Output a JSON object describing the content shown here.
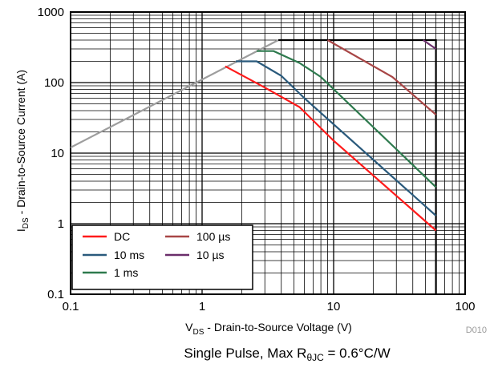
{
  "chart_data": {
    "type": "line",
    "x_scale": "log",
    "y_scale": "log",
    "xlim": [
      0.1,
      100
    ],
    "ylim": [
      0.1,
      1000
    ],
    "x_ticks": [
      "0.1",
      "1",
      "10",
      "100"
    ],
    "y_ticks": [
      "0.1",
      "1",
      "10",
      "100",
      "1000"
    ],
    "xlabel": {
      "main": "V",
      "sub": "DS",
      "rest": " - Drain-to-Source Voltage (V)"
    },
    "ylabel": {
      "main": "I",
      "sub": "DS",
      "rest": " - Drain-to-Source Current (A)"
    },
    "grid": true,
    "legend_position": "bottom-left",
    "figure_id": "D010",
    "caption": {
      "prefix": "Single Pulse, Max R",
      "sub": "θJC",
      "suffix": " = 0.6°C/W"
    },
    "series": [
      {
        "name": "DC",
        "color": "#ff1a1a",
        "x": [
          1.5,
          3,
          5.5,
          10,
          60
        ],
        "y": [
          170,
          85,
          45,
          15,
          0.8
        ]
      },
      {
        "name": "10 ms",
        "color": "#2a5a7c",
        "x": [
          1.8,
          2.6,
          4,
          6,
          60
        ],
        "y": [
          200,
          200,
          125,
          60,
          1.3
        ]
      },
      {
        "name": "1 ms",
        "color": "#2e7a4e",
        "x": [
          2.6,
          3.5,
          5.5,
          8,
          60
        ],
        "y": [
          280,
          280,
          190,
          120,
          3.3
        ]
      },
      {
        "name": "100 µs",
        "color": "#a84646",
        "x": [
          9,
          28,
          60
        ],
        "y": [
          400,
          120,
          35
        ]
      },
      {
        "name": "10 µs",
        "color": "#6b2e6b",
        "x": [
          48,
          60
        ],
        "y": [
          400,
          300
        ]
      }
    ],
    "limits": [
      {
        "label": "",
        "color": "#9e9e9e",
        "x": [
          0.1,
          3.8
        ],
        "y": [
          12,
          400
        ]
      },
      {
        "label": "",
        "color": "#000000",
        "x": [
          3.8,
          60,
          60
        ],
        "y": [
          400,
          400,
          0.1
        ]
      }
    ]
  }
}
